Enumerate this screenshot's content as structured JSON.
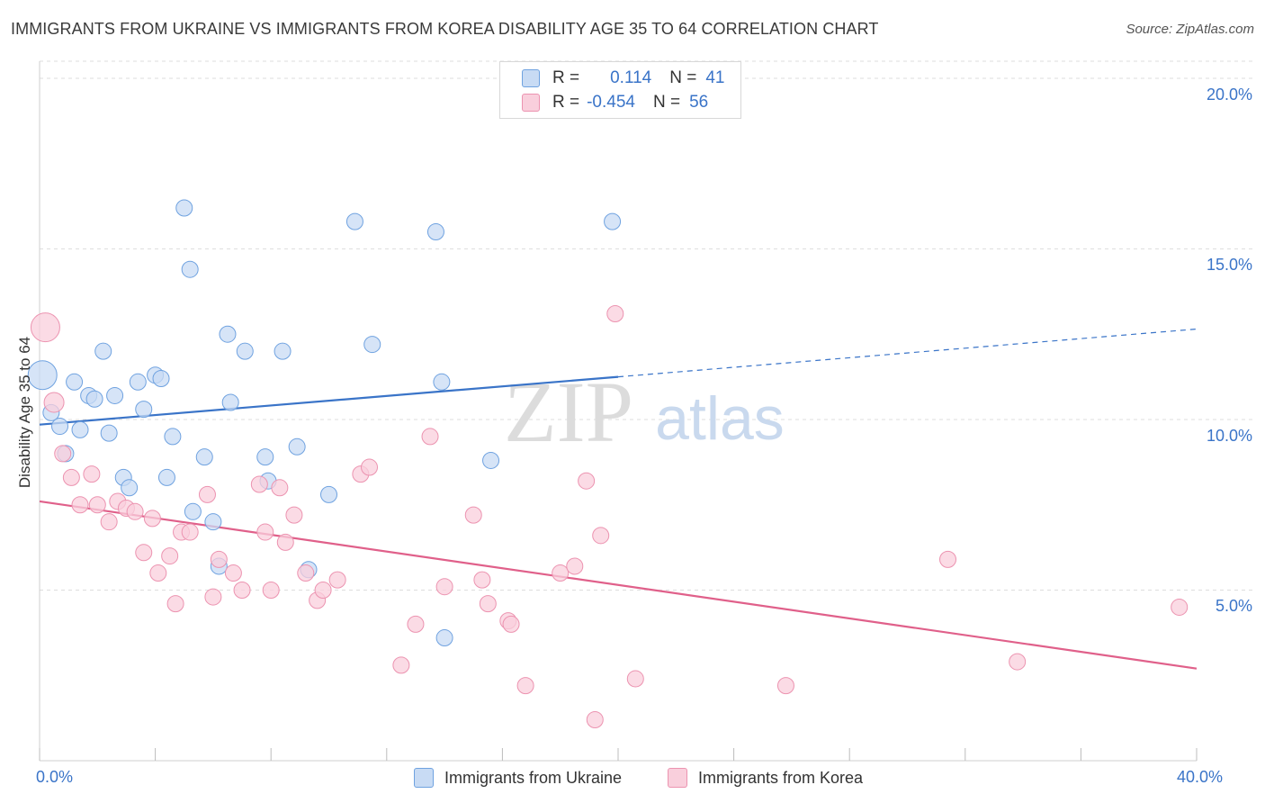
{
  "title": "IMMIGRANTS FROM UKRAINE VS IMMIGRANTS FROM KOREA DISABILITY AGE 35 TO 64 CORRELATION CHART",
  "source": "Source: ZipAtlas.com",
  "watermark": {
    "zip": "ZIP",
    "atlas": "atlas"
  },
  "legend": {
    "rows": [
      {
        "r_label": "R =",
        "r_value": "0.114",
        "n_label": "N =",
        "n_value": "41",
        "color": "#6fa2e0",
        "fill": "#c8dbf4"
      },
      {
        "r_label": "R =",
        "r_value": "-0.454",
        "n_label": "N =",
        "n_value": "56",
        "color": "#ec93b0",
        "fill": "#f9cfdc"
      }
    ]
  },
  "bottom_legend": [
    {
      "label": "Immigrants from Ukraine",
      "color": "#6fa2e0",
      "fill": "#c8dbf4"
    },
    {
      "label": "Immigrants from Korea",
      "color": "#ec93b0",
      "fill": "#f9cfdc"
    }
  ],
  "chart_data": {
    "type": "scatter",
    "title": "IMMIGRANTS FROM UKRAINE VS IMMIGRANTS FROM KOREA DISABILITY AGE 35 TO 64 CORRELATION CHART",
    "xlabel": "",
    "ylabel": "Disability Age 35 to 64",
    "xlim": [
      0,
      40
    ],
    "ylim": [
      0,
      20.5
    ],
    "x_tick_labels": [
      "0.0%",
      "40.0%"
    ],
    "y_ticks": [
      5,
      10,
      15,
      20
    ],
    "y_tick_labels": [
      "5.0%",
      "10.0%",
      "15.0%",
      "20.0%"
    ],
    "grid": true,
    "legend_position": "top-center",
    "series": [
      {
        "name": "Immigrants from Ukraine",
        "color": "#3a74c8",
        "point_fill": "#c8dbf4",
        "point_stroke": "#6fa2e0",
        "trend": {
          "x0": 0,
          "y0": 9.85,
          "x1": 20,
          "y1": 11.25,
          "dashed_to_x": 40,
          "dashed_to_y": 12.65
        },
        "points": [
          [
            0.1,
            11.3,
            16
          ],
          [
            0.4,
            10.2,
            9
          ],
          [
            0.7,
            9.8,
            9
          ],
          [
            0.9,
            9.0,
            9
          ],
          [
            1.2,
            11.1,
            9
          ],
          [
            1.4,
            9.7,
            9
          ],
          [
            1.7,
            10.7,
            9
          ],
          [
            1.9,
            10.6,
            9
          ],
          [
            2.2,
            12.0,
            9
          ],
          [
            2.4,
            9.6,
            9
          ],
          [
            2.6,
            10.7,
            9
          ],
          [
            2.9,
            8.3,
            9
          ],
          [
            3.1,
            8.0,
            9
          ],
          [
            3.4,
            11.1,
            9
          ],
          [
            3.6,
            10.3,
            9
          ],
          [
            4.0,
            11.3,
            9
          ],
          [
            4.2,
            11.2,
            9
          ],
          [
            4.4,
            8.3,
            9
          ],
          [
            4.6,
            9.5,
            9
          ],
          [
            5.0,
            16.2,
            9
          ],
          [
            5.2,
            14.4,
            9
          ],
          [
            5.3,
            7.3,
            9
          ],
          [
            5.7,
            8.9,
            9
          ],
          [
            6.0,
            7.0,
            9
          ],
          [
            6.2,
            5.7,
            9
          ],
          [
            6.5,
            12.5,
            9
          ],
          [
            6.6,
            10.5,
            9
          ],
          [
            7.1,
            12.0,
            9
          ],
          [
            7.8,
            8.9,
            9
          ],
          [
            7.9,
            8.2,
            9
          ],
          [
            8.4,
            12.0,
            9
          ],
          [
            8.9,
            9.2,
            9
          ],
          [
            9.3,
            5.6,
            9
          ],
          [
            10.0,
            7.8,
            9
          ],
          [
            10.9,
            15.8,
            9
          ],
          [
            11.5,
            12.2,
            9
          ],
          [
            13.7,
            15.5,
            9
          ],
          [
            13.9,
            11.1,
            9
          ],
          [
            14.0,
            3.6,
            9
          ],
          [
            15.6,
            8.8,
            9
          ],
          [
            19.8,
            15.8,
            9
          ]
        ]
      },
      {
        "name": "Immigrants from Korea",
        "color": "#e0608a",
        "point_fill": "#f9cfdc",
        "point_stroke": "#ec93b0",
        "trend": {
          "x0": 0,
          "y0": 7.6,
          "x1": 40,
          "y1": 2.7
        },
        "points": [
          [
            0.2,
            12.7,
            16
          ],
          [
            0.5,
            10.5,
            11
          ],
          [
            0.8,
            9.0,
            9
          ],
          [
            1.1,
            8.3,
            9
          ],
          [
            1.4,
            7.5,
            9
          ],
          [
            1.8,
            8.4,
            9
          ],
          [
            2.0,
            7.5,
            9
          ],
          [
            2.4,
            7.0,
            9
          ],
          [
            2.7,
            7.6,
            9
          ],
          [
            3.0,
            7.4,
            9
          ],
          [
            3.3,
            7.3,
            9
          ],
          [
            3.6,
            6.1,
            9
          ],
          [
            3.9,
            7.1,
            9
          ],
          [
            4.1,
            5.5,
            9
          ],
          [
            4.5,
            6.0,
            9
          ],
          [
            4.7,
            4.6,
            9
          ],
          [
            4.9,
            6.7,
            9
          ],
          [
            5.2,
            6.7,
            9
          ],
          [
            5.8,
            7.8,
            9
          ],
          [
            6.0,
            4.8,
            9
          ],
          [
            6.2,
            5.9,
            9
          ],
          [
            6.7,
            5.5,
            9
          ],
          [
            7.0,
            5.0,
            9
          ],
          [
            7.6,
            8.1,
            9
          ],
          [
            7.8,
            6.7,
            9
          ],
          [
            8.0,
            5.0,
            9
          ],
          [
            8.3,
            8.0,
            9
          ],
          [
            8.5,
            6.4,
            9
          ],
          [
            8.8,
            7.2,
            9
          ],
          [
            9.2,
            5.5,
            9
          ],
          [
            9.6,
            4.7,
            9
          ],
          [
            9.8,
            5.0,
            9
          ],
          [
            10.3,
            5.3,
            9
          ],
          [
            11.1,
            8.4,
            9
          ],
          [
            11.4,
            8.6,
            9
          ],
          [
            12.5,
            2.8,
            9
          ],
          [
            13.0,
            4.0,
            9
          ],
          [
            13.5,
            9.5,
            9
          ],
          [
            14.0,
            5.1,
            9
          ],
          [
            15.0,
            7.2,
            9
          ],
          [
            15.3,
            5.3,
            9
          ],
          [
            15.5,
            4.6,
            9
          ],
          [
            16.2,
            4.1,
            9
          ],
          [
            16.3,
            4.0,
            9
          ],
          [
            16.8,
            2.2,
            9
          ],
          [
            18.0,
            5.5,
            9
          ],
          [
            18.5,
            5.7,
            9
          ],
          [
            18.9,
            8.2,
            9
          ],
          [
            19.2,
            1.2,
            9
          ],
          [
            19.4,
            6.6,
            9
          ],
          [
            19.9,
            13.1,
            9
          ],
          [
            20.6,
            2.4,
            9
          ],
          [
            25.8,
            2.2,
            9
          ],
          [
            31.4,
            5.9,
            9
          ],
          [
            33.8,
            2.9,
            9
          ],
          [
            39.4,
            4.5,
            9
          ]
        ]
      }
    ]
  }
}
